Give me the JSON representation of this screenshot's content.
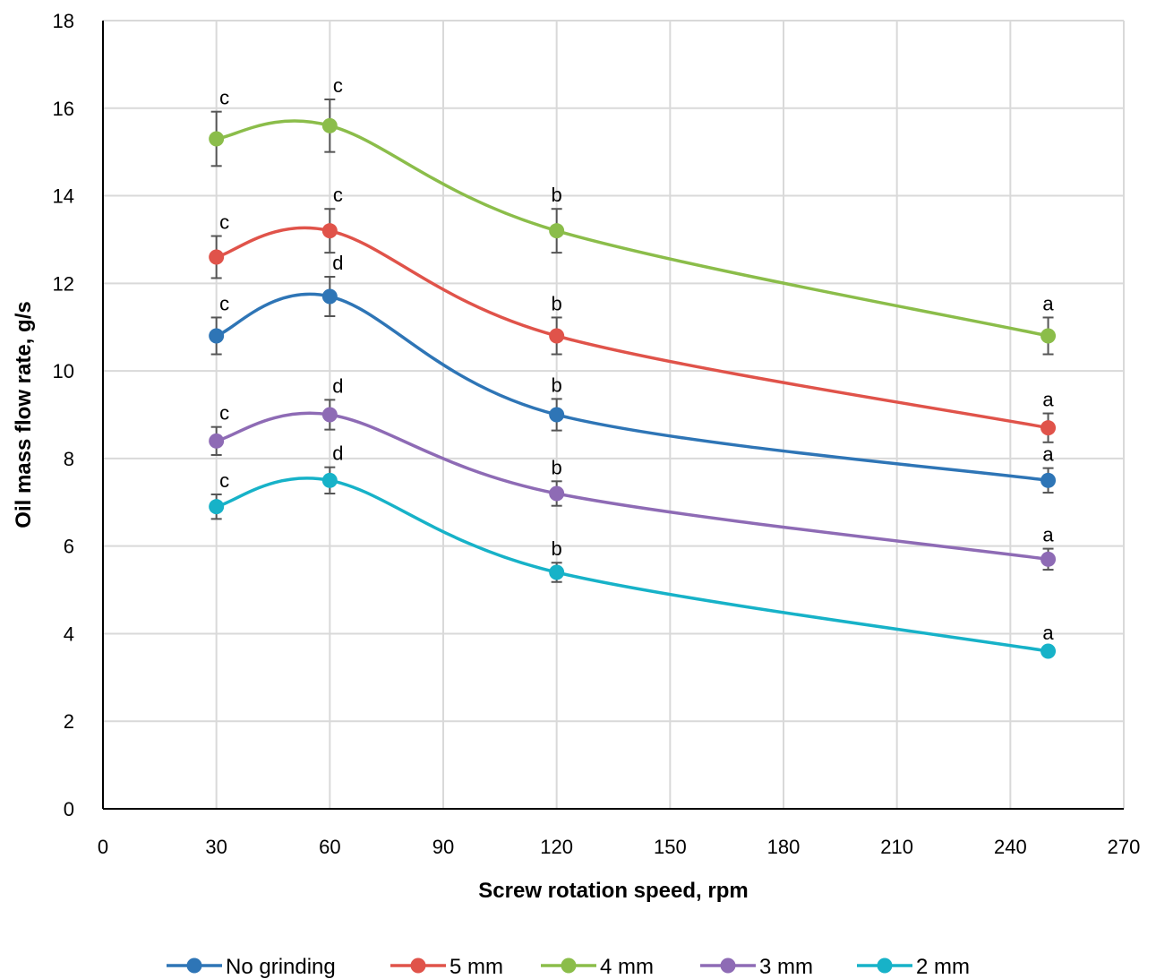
{
  "chart_data": {
    "type": "line",
    "xlabel": "Screw rotation speed, rpm",
    "ylabel": "Oil mass flow rate, g/s",
    "xlim": [
      0,
      270
    ],
    "ylim": [
      0,
      18
    ],
    "x_ticks": [
      0,
      30,
      60,
      90,
      120,
      150,
      180,
      210,
      240,
      270
    ],
    "y_ticks": [
      0,
      2,
      4,
      6,
      8,
      10,
      12,
      14,
      16,
      18
    ],
    "grid": true,
    "legend_position": "bottom",
    "smooth": true,
    "x": [
      30,
      60,
      120,
      250
    ],
    "series": [
      {
        "name": "No grinding",
        "color": "#2e75b6",
        "values": [
          10.8,
          11.7,
          9.0,
          7.5
        ],
        "errors": [
          0.42,
          0.45,
          0.36,
          0.28
        ],
        "letters": [
          "c",
          "d",
          "b",
          "a"
        ]
      },
      {
        "name": "5 mm",
        "color": "#e0534a",
        "values": [
          12.6,
          13.2,
          10.8,
          8.7
        ],
        "errors": [
          0.48,
          0.5,
          0.42,
          0.33
        ],
        "letters": [
          "c",
          "c",
          "b",
          "a"
        ]
      },
      {
        "name": "4 mm",
        "color": "#8bbd4a",
        "values": [
          15.3,
          15.6,
          13.2,
          10.8
        ],
        "errors": [
          0.62,
          0.6,
          0.5,
          0.42
        ],
        "letters": [
          "c",
          "c",
          "b",
          "a"
        ]
      },
      {
        "name": "3 mm",
        "color": "#8e6bb5",
        "values": [
          8.4,
          9.0,
          7.2,
          5.7
        ],
        "errors": [
          0.32,
          0.34,
          0.28,
          0.24
        ],
        "letters": [
          "c",
          "d",
          "b",
          "a"
        ]
      },
      {
        "name": "2 mm",
        "color": "#17b2c8",
        "values": [
          6.9,
          7.5,
          5.4,
          3.6
        ],
        "errors": [
          0.28,
          0.3,
          0.22,
          0.1
        ],
        "letters": [
          "c",
          "d",
          "b",
          "a"
        ]
      }
    ]
  }
}
